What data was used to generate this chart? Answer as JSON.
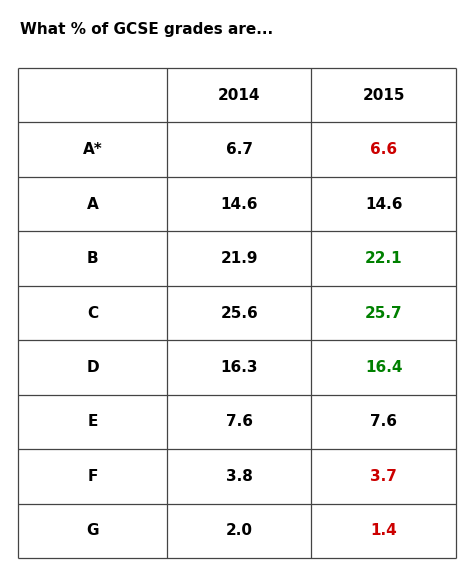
{
  "title": "What % of GCSE grades are...",
  "col_headers": [
    "",
    "2014",
    "2015"
  ],
  "rows": [
    {
      "grade": "A*",
      "val2014": "6.7",
      "val2015": "6.6",
      "color2015": "#cc0000"
    },
    {
      "grade": "A",
      "val2014": "14.6",
      "val2015": "14.6",
      "color2015": "#000000"
    },
    {
      "grade": "B",
      "val2014": "21.9",
      "val2015": "22.1",
      "color2015": "#008000"
    },
    {
      "grade": "C",
      "val2014": "25.6",
      "val2015": "25.7",
      "color2015": "#008000"
    },
    {
      "grade": "D",
      "val2014": "16.3",
      "val2015": "16.4",
      "color2015": "#008000"
    },
    {
      "grade": "E",
      "val2014": "7.6",
      "val2015": "7.6",
      "color2015": "#000000"
    },
    {
      "grade": "F",
      "val2014": "3.8",
      "val2015": "3.7",
      "color2015": "#cc0000"
    },
    {
      "grade": "G",
      "val2014": "2.0",
      "val2015": "1.4",
      "color2015": "#cc0000"
    }
  ],
  "background_color": "#ffffff",
  "title_fontsize": 11,
  "cell_fontsize": 11,
  "header_fontsize": 11,
  "grade_fontsize": 11
}
